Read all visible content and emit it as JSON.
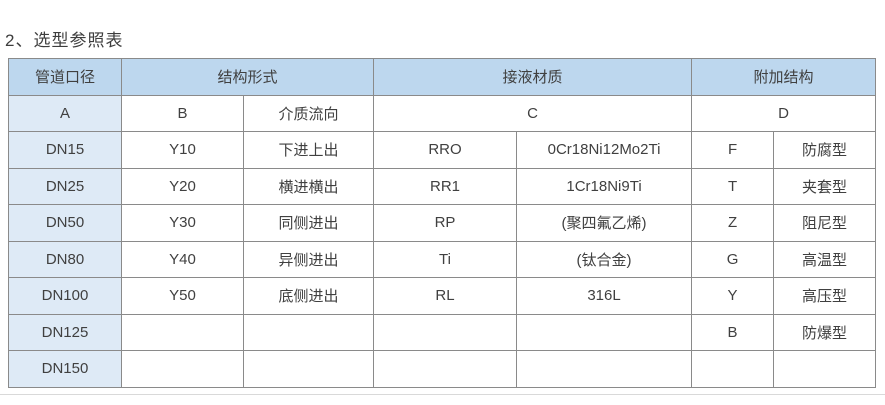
{
  "page": {
    "title": "2、选型参照表"
  },
  "colors": {
    "header_bg": "#bdd7ee",
    "first_column_bg": "#deeaf6",
    "border": "#8a8a8a",
    "text": "#404040",
    "bottom_rule": "#d9d9d9"
  },
  "table": {
    "header_row1": {
      "pipe_diameter": "管道口径",
      "structure_form": "结构形式",
      "wetted_material": "接液材质",
      "additional_structure": "附加结构"
    },
    "header_row2": {
      "a": "A",
      "b": "B",
      "medium_flow": "介质流向",
      "c": "C",
      "d": "D"
    },
    "rows": [
      [
        "DN15",
        "Y10",
        "下进上出",
        "RRO",
        "0Cr18Ni12Mo2Ti",
        "F",
        "防腐型"
      ],
      [
        "DN25",
        "Y20",
        "横进横出",
        "RR1",
        "1Cr18Ni9Ti",
        "T",
        "夹套型"
      ],
      [
        "DN50",
        "Y30",
        "同侧进出",
        "RP",
        "(聚四氟乙烯)",
        "Z",
        "阻尼型"
      ],
      [
        "DN80",
        "Y40",
        "异侧进出",
        "Ti",
        "(钛合金)",
        "G",
        "高温型"
      ],
      [
        "DN100",
        "Y50",
        "底侧进出",
        "RL",
        "316L",
        "Y",
        "高压型"
      ],
      [
        "DN125",
        "",
        "",
        "",
        "",
        "B",
        "防爆型"
      ],
      [
        "DN150",
        "",
        "",
        "",
        "",
        "",
        ""
      ]
    ]
  }
}
